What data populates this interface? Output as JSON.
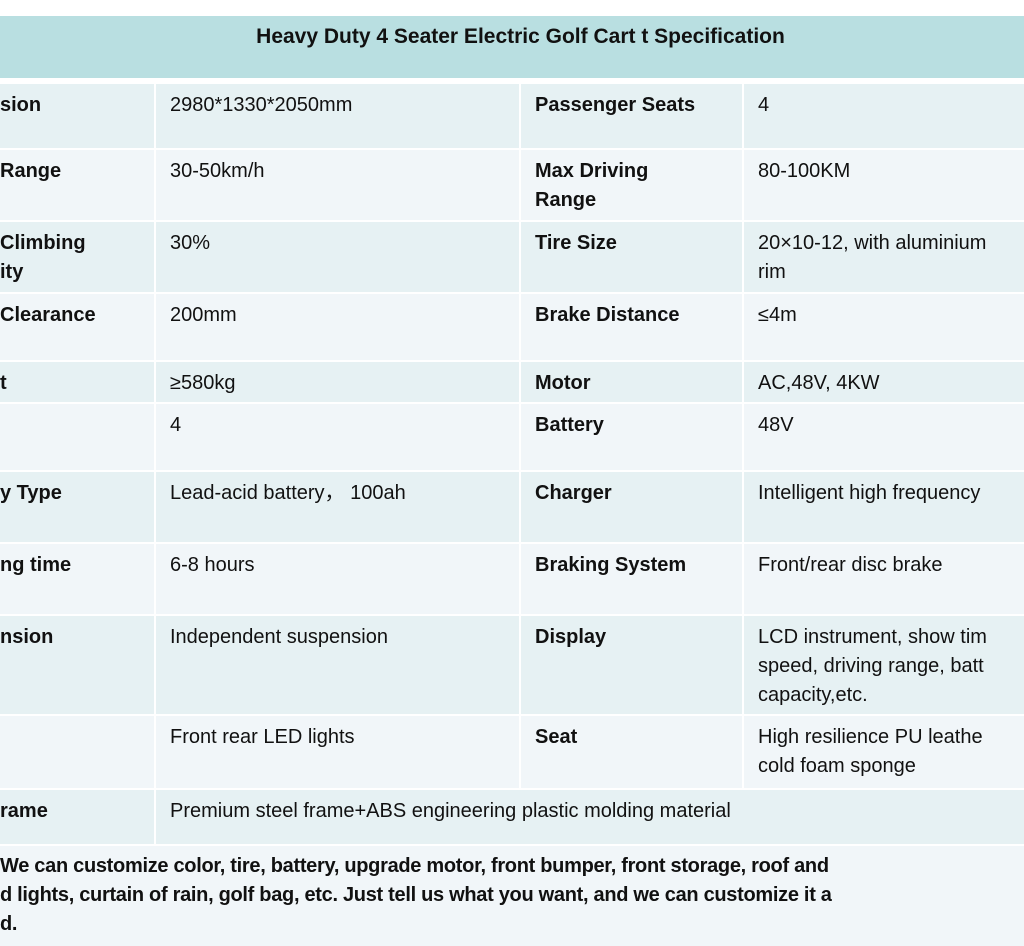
{
  "title": "Heavy Duty 4 Seater Electric Golf Cart t Specification",
  "rows": [
    {
      "l1": "sion",
      "v1": "2980*1330*2050mm",
      "l2": "Passenger Seats",
      "v2": "4",
      "h": 64
    },
    {
      "l1": " Range",
      "v1": "30-50km/h",
      "l2": "Max Driving\nRange",
      "v2": "80-100KM",
      "h": 70
    },
    {
      "l1": "Climbing\nity",
      "v1": "30%",
      "l2": "Tire Size",
      "v2": "20×10-12, with aluminium\nrim",
      "h": 70
    },
    {
      "l1": " Clearance",
      "v1": "200mm",
      "l2": "Brake Distance",
      "v2": "≤4m",
      "h": 66
    },
    {
      "l1": "t",
      "v1": "≥580kg",
      "l2": "Motor",
      "v2": "AC,48V, 4KW",
      "h": 40
    },
    {
      "l1": "",
      "v1": "4",
      "l2": "Battery",
      "v2": "48V",
      "h": 66
    },
    {
      "l1": "y Type",
      "v1": "Lead-acid battery，  100ah",
      "l2": "Charger",
      "v2": "Intelligent high frequency",
      "h": 70
    },
    {
      "l1": "ng time",
      "v1": "6-8 hours",
      "l2": "Braking System",
      "v2": "Front/rear disc brake",
      "h": 70
    },
    {
      "l1": "nsion",
      "v1": "Independent suspension",
      "l2": "Display",
      "v2": "LCD instrument, show tim\nspeed, driving range, batt\ncapacity,etc.",
      "h": 98
    },
    {
      "l1": "",
      "v1": "Front rear LED lights",
      "l2": "Seat",
      "v2": "High resilience PU leathe\ncold foam sponge",
      "h": 72
    }
  ],
  "frame": {
    "label": "rame",
    "value": "Premium steel frame+ABS engineering plastic molding material"
  },
  "note": [
    "We can customize color, tire, battery, upgrade motor, front bumper,  front storage, roof and",
    "d lights, curtain of rain, golf bag, etc. Just tell us what you want, and we can customize it a",
    "d."
  ]
}
